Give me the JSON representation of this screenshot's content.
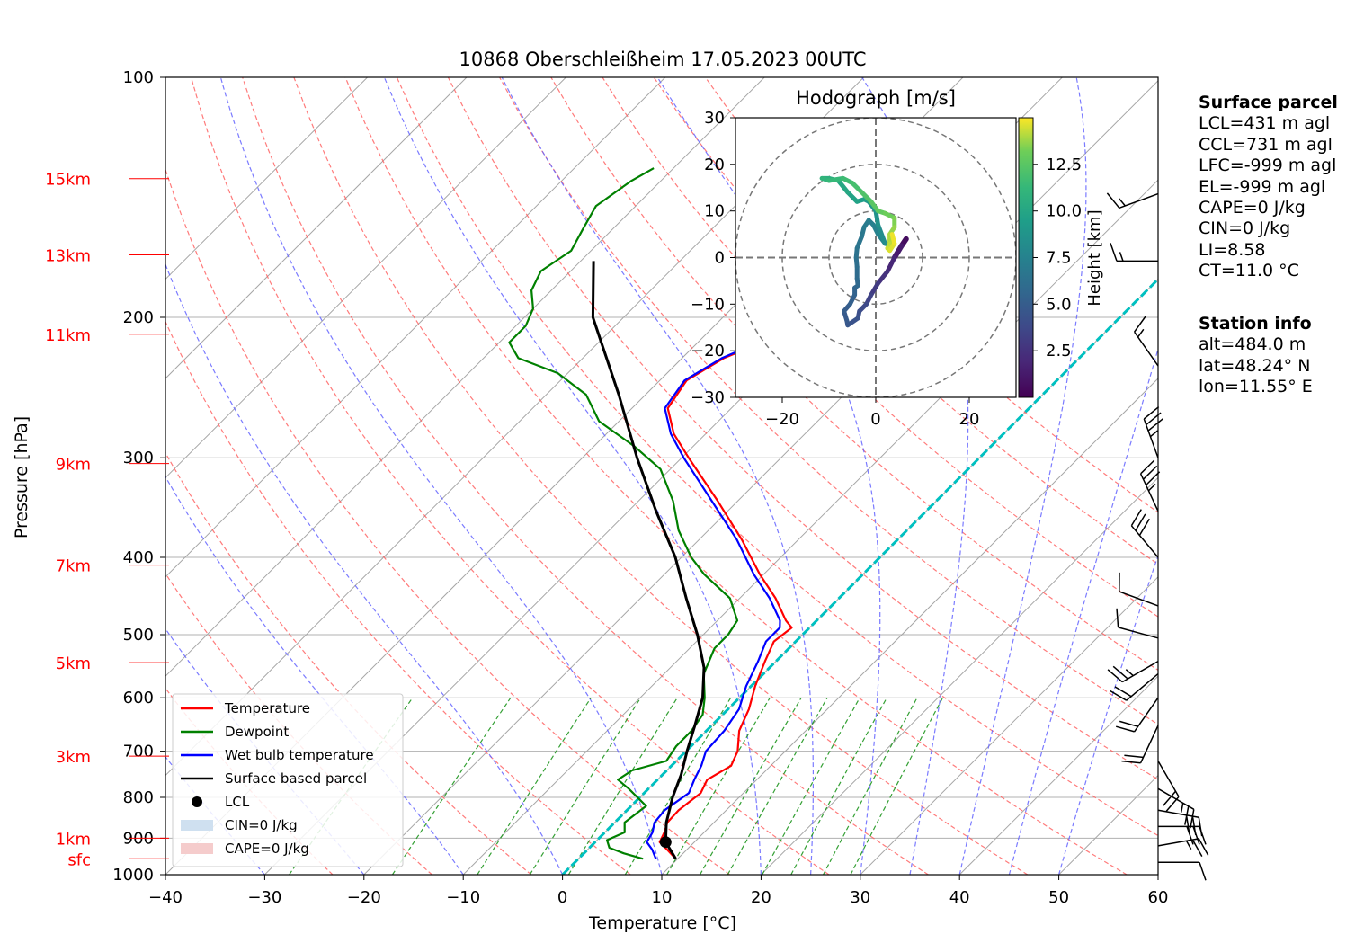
{
  "chart_data": [
    {
      "type": "line",
      "title": "10868 Oberschleißheim 17.05.2023 00UTC",
      "xlabel": "Temperature [°C]",
      "ylabel": "Pressure [hPa]",
      "xlim": [
        -40,
        60
      ],
      "ylim": [
        1000,
        100
      ],
      "y_scale": "log",
      "x_ticks": [
        "−40",
        "−30",
        "−20",
        "−10",
        "0",
        "10",
        "20",
        "30",
        "40",
        "50",
        "60"
      ],
      "y_ticks": [
        "100",
        "200",
        "300",
        "400",
        "500",
        "600",
        "700",
        "800",
        "900",
        "1000"
      ],
      "height_labels": [
        {
          "label": "15km",
          "p": 134
        },
        {
          "label": "13km",
          "p": 167
        },
        {
          "label": "11km",
          "p": 210
        },
        {
          "label": "9km",
          "p": 305
        },
        {
          "label": "7km",
          "p": 409
        },
        {
          "label": "5km",
          "p": 542
        },
        {
          "label": "3km",
          "p": 710
        },
        {
          "label": "1km",
          "p": 900
        },
        {
          "label": "sfc",
          "p": 955
        }
      ],
      "legend": {
        "placement": "lower-left",
        "entries": [
          {
            "label": "Temperature",
            "color": "#ff0000",
            "kind": "line"
          },
          {
            "label": "Dewpoint",
            "color": "#008000",
            "kind": "line"
          },
          {
            "label": "Wet bulb temperature",
            "color": "#0000ff",
            "kind": "line"
          },
          {
            "label": "Surface based parcel",
            "color": "#000000",
            "kind": "line"
          },
          {
            "label": "LCL",
            "color": "#000000",
            "kind": "dot"
          },
          {
            "label": "CIN=0 J/kg",
            "color": "#cfe0f0",
            "kind": "patch"
          },
          {
            "label": "CAPE=0 J/kg",
            "color": "#f5cccc",
            "kind": "patch"
          }
        ]
      },
      "series": [
        {
          "name": "Temperature",
          "color": "#ff0000",
          "p": [
            955,
            930,
            910,
            885,
            860,
            830,
            790,
            760,
            730,
            700,
            660,
            620,
            580,
            540,
            510,
            490,
            480,
            450,
            420,
            380,
            340,
            300,
            280,
            260,
            240,
            225,
            215,
            200,
            185,
            170,
            160,
            150,
            140,
            130
          ],
          "t": [
            9.8,
            8.0,
            6.5,
            6.0,
            5.3,
            5.2,
            5.7,
            5.0,
            6.0,
            5.2,
            3.3,
            2.1,
            0.4,
            -1.1,
            -2.2,
            -1.8,
            -3.1,
            -6.4,
            -10.4,
            -15.7,
            -22.0,
            -29.3,
            -33.2,
            -36.4,
            -37.3,
            -35.8,
            -33.5,
            -33.4,
            -36.2,
            -35.6,
            -36.7,
            -37.1,
            -37.6,
            -37.6
          ]
        },
        {
          "name": "Dewpoint",
          "color": "#008000",
          "p": [
            955,
            940,
            925,
            905,
            885,
            860,
            820,
            780,
            760,
            740,
            720,
            690,
            660,
            630,
            600,
            560,
            520,
            500,
            480,
            450,
            420,
            400,
            370,
            340,
            310,
            290,
            270,
            250,
            235,
            225,
            215,
            205,
            195,
            185,
            175,
            165,
            155,
            145,
            135,
            130
          ],
          "t": [
            6.5,
            4.0,
            2.0,
            1.0,
            2.0,
            1.0,
            1.5,
            -2.0,
            -4.0,
            -3.5,
            -1.0,
            -1.5,
            -1.5,
            -2.0,
            -3.5,
            -6.0,
            -7.5,
            -7.5,
            -8.0,
            -11.0,
            -16.0,
            -19.0,
            -23.0,
            -26.5,
            -31.0,
            -36.0,
            -42.0,
            -46.0,
            -51.0,
            -56.5,
            -59.0,
            -59.0,
            -60.0,
            -62.0,
            -63.0,
            -62.0,
            -63.0,
            -64.0,
            -63.0,
            -62.0
          ]
        },
        {
          "name": "Wet bulb temperature",
          "color": "#0000ff",
          "p": [
            955,
            930,
            910,
            885,
            860,
            830,
            790,
            760,
            730,
            700,
            660,
            620,
            580,
            540,
            510,
            490,
            480,
            450,
            420,
            380,
            340,
            300,
            280,
            260,
            240,
            225,
            215,
            200,
            185,
            170,
            160,
            150,
            140,
            130
          ],
          "t": [
            7.8,
            6.5,
            5.2,
            4.8,
            4.0,
            3.8,
            4.5,
            3.7,
            3.0,
            2.0,
            1.8,
            1.1,
            -0.5,
            -1.8,
            -3.0,
            -3.0,
            -3.7,
            -7.0,
            -11.0,
            -16.2,
            -22.6,
            -29.8,
            -33.5,
            -36.7,
            -37.5,
            -36.0,
            -33.9,
            -33.8,
            -36.4,
            -35.9,
            -37.0,
            -37.4,
            -37.8,
            -37.8
          ]
        },
        {
          "name": "Surface based parcel",
          "color": "#000000",
          "p": [
            955,
            910,
            860,
            800,
            750,
            700,
            650,
            600,
            550,
            500,
            450,
            400,
            350,
            300,
            250,
            200,
            170
          ],
          "t": [
            9.8,
            7.1,
            5.2,
            3.3,
            1.9,
            0.1,
            -1.7,
            -3.7,
            -6.6,
            -10.6,
            -15.4,
            -20.6,
            -27.2,
            -34.5,
            -42.7,
            -53.1,
            -58.7
          ]
        },
        {
          "name": "LCL",
          "color": "#000000",
          "kind": "point",
          "p": [
            910
          ],
          "t": [
            7.1
          ]
        }
      ],
      "isotherms": {
        "skew": "45deg",
        "range_C": [
          -100,
          60
        ],
        "step": 10,
        "color": "#999999"
      },
      "dry_adiabats": {
        "theta_K": [
          250,
          260,
          270,
          280,
          290,
          300,
          310,
          320,
          330,
          340,
          350,
          360,
          370,
          380,
          390,
          400
        ],
        "color": "#ff0000"
      },
      "moist_adiabats": {
        "start_T_C": [
          -40,
          -30,
          -20,
          -10,
          0,
          10,
          20,
          25,
          30,
          35,
          40,
          45,
          50
        ],
        "color": "#0000ff"
      },
      "mixing_ratio_lines": {
        "w_gkg": [
          0.4,
          1,
          2,
          3,
          4,
          6,
          8,
          10,
          12,
          15,
          18,
          22,
          26
        ],
        "color": "#008000"
      },
      "freezing_isotherm": {
        "color": "#00c0c0",
        "t": 0
      },
      "wind_barbs": [
        {
          "p": 965,
          "speed_kt": 10,
          "dir_deg": 90
        },
        {
          "p": 920,
          "speed_kt": 25,
          "dir_deg": 80
        },
        {
          "p": 870,
          "speed_kt": 30,
          "dir_deg": 90
        },
        {
          "p": 830,
          "speed_kt": 30,
          "dir_deg": 100
        },
        {
          "p": 780,
          "speed_kt": 25,
          "dir_deg": 120
        },
        {
          "p": 720,
          "speed_kt": 20,
          "dir_deg": 150
        },
        {
          "p": 650,
          "speed_kt": 20,
          "dir_deg": 205
        },
        {
          "p": 600,
          "speed_kt": 20,
          "dir_deg": 215
        },
        {
          "p": 560,
          "speed_kt": 20,
          "dir_deg": 230
        },
        {
          "p": 540,
          "speed_kt": 25,
          "dir_deg": 240
        },
        {
          "p": 505,
          "speed_kt": 10,
          "dir_deg": 285
        },
        {
          "p": 460,
          "speed_kt": 10,
          "dir_deg": 290
        },
        {
          "p": 400,
          "speed_kt": 30,
          "dir_deg": 320
        },
        {
          "p": 350,
          "speed_kt": 35,
          "dir_deg": 335
        },
        {
          "p": 300,
          "speed_kt": 35,
          "dir_deg": 340
        },
        {
          "p": 230,
          "speed_kt": 15,
          "dir_deg": 325
        },
        {
          "p": 170,
          "speed_kt": 15,
          "dir_deg": 270
        },
        {
          "p": 140,
          "speed_kt": 15,
          "dir_deg": 250
        }
      ]
    },
    {
      "type": "line",
      "title": "Hodograph [m/s]",
      "xlim": [
        -30,
        30
      ],
      "ylim": [
        -30,
        30
      ],
      "x_ticks": [
        "−20",
        "0",
        "20"
      ],
      "y_ticks": [
        "30",
        "20",
        "10",
        "0",
        "−10",
        "−20",
        "−30"
      ],
      "rings_ms": [
        10,
        20,
        30
      ],
      "colorbar": {
        "label": "Height [km]",
        "ticks": [
          "2.5",
          "5.0",
          "7.5",
          "10.0",
          "12.5"
        ],
        "range_km": [
          0,
          15
        ],
        "colormap": "viridis"
      },
      "series": [
        {
          "name": "wind",
          "u": [
            6.5,
            5.5,
            4.0,
            2.5,
            0.5,
            -1.0,
            -2.0,
            -3.5,
            -3.8,
            -6.0,
            -6.2,
            -6.8,
            -5.5,
            -4.5,
            -4.5,
            -3.8,
            -4.0,
            -4.0,
            -4.2,
            -4.0,
            -3.0,
            -2.5,
            -1.5,
            -0.5,
            0.5,
            2.0,
            3.5,
            2.0,
            0.5,
            0.0,
            -1.5,
            -2.5,
            -4.0,
            -6.0,
            -8.0,
            -10.0,
            -11.5,
            -10.0,
            -7.0,
            -5.0,
            -3.0,
            -1.0,
            0.5,
            2.0,
            4.0,
            4.0,
            3.0,
            3.0,
            2.5,
            3.0,
            4.0,
            3.5
          ],
          "v": [
            4.0,
            2.5,
            0.0,
            -3.0,
            -5.5,
            -8.0,
            -10.0,
            -11.5,
            -13.0,
            -14.5,
            -13.5,
            -11.5,
            -10.0,
            -8.0,
            -6.5,
            -6.0,
            -4.5,
            -2.0,
            0.0,
            2.0,
            4.5,
            6.5,
            8.0,
            7.0,
            5.0,
            3.0,
            2.5,
            3.0,
            7.0,
            10.0,
            12.0,
            12.5,
            12.0,
            14.0,
            16.5,
            17.0,
            17.0,
            16.5,
            17.0,
            16.0,
            14.0,
            12.0,
            10.0,
            9.5,
            8.5,
            6.5,
            5.0,
            3.0,
            2.0,
            1.5,
            3.0,
            5.0
          ],
          "height_km": [
            0.0,
            0.6,
            1.3,
            1.9,
            2.5,
            3.0,
            3.4,
            3.8,
            4.1,
            4.4,
            4.6,
            4.8,
            5.0,
            5.2,
            5.4,
            5.6,
            5.8,
            6.0,
            6.2,
            6.4,
            6.6,
            6.8,
            7.0,
            7.2,
            7.4,
            7.6,
            7.8,
            8.0,
            8.3,
            8.6,
            8.9,
            9.2,
            9.5,
            9.8,
            10.1,
            10.4,
            10.7,
            11.0,
            11.3,
            11.6,
            11.9,
            12.2,
            12.5,
            12.8,
            13.1,
            13.4,
            13.7,
            14.0,
            14.2,
            14.4,
            14.6,
            14.8
          ]
        }
      ]
    }
  ],
  "info": {
    "surface_header": "Surface parcel",
    "surface_lines": [
      "LCL=431 m agl",
      "CCL=731 m agl",
      "LFC=-999 m agl",
      "EL=-999 m agl",
      "CAPE=0 J/kg",
      "CIN=0 J/kg",
      "LI=8.58",
      "CT=11.0 °C"
    ],
    "station_header": "Station info",
    "station_lines": [
      "alt=484.0 m",
      "lat=48.24° N",
      "lon=11.55° E"
    ]
  }
}
